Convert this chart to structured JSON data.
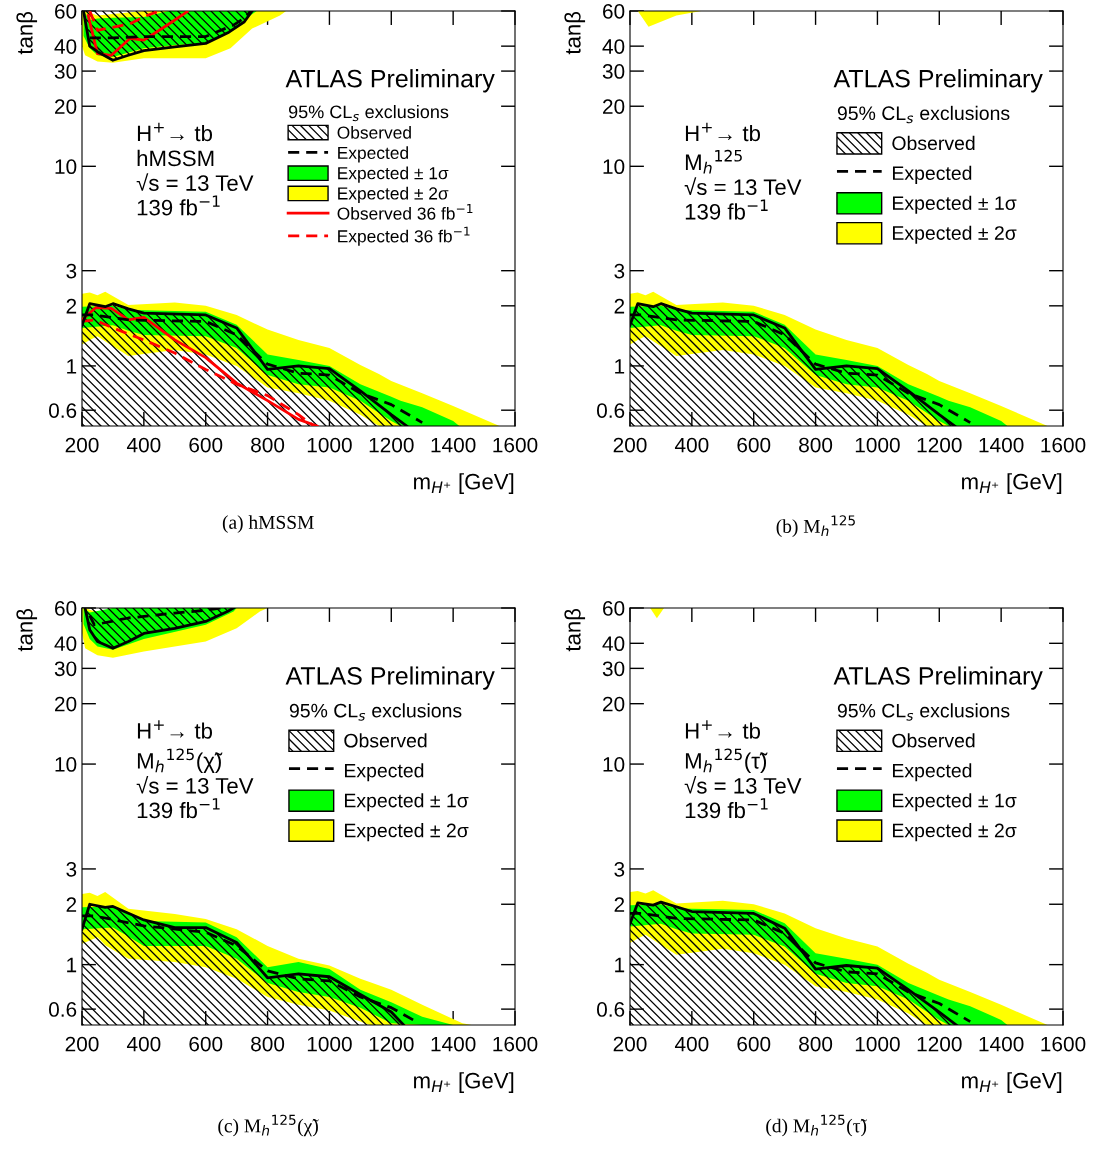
{
  "chart_data": [
    {
      "type": "line",
      "log": "y",
      "xlim": [
        200,
        1600
      ],
      "ylim": [
        0.5,
        60
      ],
      "xticks": [
        200,
        400,
        600,
        800,
        1000,
        1200,
        1400,
        1600
      ],
      "yticks": [
        0.6,
        1,
        2,
        3,
        10,
        20,
        30,
        40,
        60
      ],
      "xlabel": "m$_{H⁺}$ [GeV]",
      "ylabel": "tanβ",
      "legend": "top right",
      "legend_title": "95% CL$_{s}$ exclusions",
      "annotations": [
        "ATLAS Preliminary",
        "H$^{+}$→ tb\nhMSSM\n√s = 13 TeV\n139 fb$^{−1}$",
        "(a) hMSSM"
      ],
      "series": [
        {
          "name": "Observed",
          "type": "area",
          "color": "#000000",
          "line_style": "solid",
          "x": [
            200,
            225,
            275,
            300,
            350,
            400,
            600,
            700,
            800,
            900,
            1000,
            1100,
            1200,
            1250
          ],
          "values": [
            1.6,
            2.05,
            1.98,
            2.05,
            1.93,
            1.84,
            1.8,
            1.55,
            0.96,
            1.0,
            0.97,
            0.75,
            0.57,
            0.5
          ]
        },
        {
          "name": "Expected",
          "color": "#000000",
          "line_style": "dashed",
          "x": [
            200,
            240,
            350,
            600,
            700,
            800,
            900,
            1000,
            1100,
            1200,
            1300
          ],
          "values": [
            1.8,
            1.8,
            1.7,
            1.67,
            1.43,
            1.02,
            0.92,
            0.9,
            0.73,
            0.64,
            0.52
          ]
        },
        {
          "name": "Expected ± 1σ",
          "color": "#00ff00",
          "x": [
            200,
            300,
            350,
            400,
            600,
            700,
            800,
            900,
            1000,
            1100,
            1200,
            1230,
            1300,
            1400,
            1420
          ],
          "values": [
            null,
            null,
            null,
            null,
            null,
            null,
            null,
            null,
            null,
            null,
            null,
            null,
            null,
            null,
            null
          ],
          "lower": [
            1.55,
            1.6,
            1.5,
            1.43,
            1.41,
            1.23,
            0.9,
            0.81,
            0.78,
            0.67,
            0.53,
            0.5,
            0.5,
            0.5,
            0.5
          ],
          "upper": [
            1.98,
            2.0,
            1.91,
            1.9,
            1.87,
            1.61,
            1.14,
            1.07,
            1.0,
            0.81,
            0.7,
            0.67,
            0.62,
            0.53,
            0.5
          ]
        },
        {
          "name": "Expected ± 2σ",
          "color": "#ffff00",
          "x": [
            200,
            225,
            250,
            275,
            350,
            500,
            600,
            700,
            800,
            900,
            1000,
            1100,
            1160,
            1200,
            1300,
            1400,
            1550
          ],
          "values": [
            null,
            null,
            null,
            null,
            null,
            null,
            null,
            null,
            null,
            null,
            null,
            null,
            null,
            null,
            null,
            null,
            null
          ],
          "lower": [
            1.28,
            1.35,
            1.41,
            1.33,
            1.12,
            1.2,
            1.14,
            1.0,
            0.78,
            0.73,
            0.67,
            0.57,
            0.5,
            0.5,
            0.5,
            0.5,
            0.5
          ],
          "upper": [
            2.3,
            2.33,
            2.26,
            2.35,
            2.02,
            2.08,
            2.0,
            1.8,
            1.52,
            1.35,
            1.23,
            1.01,
            0.91,
            0.84,
            0.73,
            0.63,
            0.5
          ]
        },
        {
          "name": "Observed 36 fb$^{−1}$",
          "color": "#ff0000",
          "line_style": "solid",
          "x": [
            200,
            245,
            295,
            350,
            400,
            500,
            600,
            700,
            800,
            900,
            960
          ],
          "values": [
            1.7,
            1.96,
            1.94,
            1.7,
            1.75,
            1.35,
            1.1,
            0.82,
            0.67,
            0.54,
            0.5
          ]
        },
        {
          "name": "Expected 36 fb$^{−1}$",
          "color": "#ff0000",
          "line_style": "dashed",
          "x": [
            200,
            240,
            300,
            400,
            500,
            600,
            700,
            800,
            900,
            950
          ],
          "values": [
            1.67,
            1.7,
            1.55,
            1.35,
            1.16,
            0.96,
            0.81,
            0.71,
            0.57,
            0.5
          ]
        },
        {
          "color": "#000000",
          "line_style": "solid",
          "x": [
            205,
            225,
            250,
            300,
            350,
            400,
            500,
            600,
            675,
            725,
            750
          ],
          "values": [
            60,
            40,
            37.5,
            34,
            36,
            38,
            39.7,
            41.3,
            47,
            53,
            60
          ],
          "lower": [
            60,
            40,
            37.5,
            34,
            36,
            38,
            39.7,
            41.3,
            47,
            53,
            60
          ],
          "upper": [
            60,
            60,
            60,
            60,
            60,
            60,
            60,
            60,
            60,
            60,
            60
          ]
        },
        {
          "color": "#000000",
          "line_style": "dashed",
          "x": [
            225,
            300,
            400,
            600,
            690,
            730,
            745
          ],
          "values": [
            44,
            44,
            44.7,
            44.7,
            51,
            56,
            60
          ]
        },
        {
          "color": "#00ff00",
          "x": [
            205,
            225,
            250,
            300,
            400,
            480,
            500,
            600,
            680,
            730,
            765
          ],
          "values": [
            null,
            null,
            null,
            null,
            null,
            null,
            null,
            null,
            null,
            null,
            null
          ],
          "lower": [
            45,
            39,
            36,
            35.3,
            39,
            40.2,
            40.5,
            41.3,
            47,
            55,
            60
          ],
          "upper": [
            60,
            54,
            55,
            55.5,
            56,
            60,
            60,
            60,
            60,
            60,
            60
          ]
        },
        {
          "color": "#ffff00",
          "x": [
            200,
            210,
            250,
            300,
            400,
            600,
            680,
            750,
            840,
            860
          ],
          "values": [
            null,
            null,
            null,
            null,
            null,
            null,
            null,
            null,
            null,
            null
          ],
          "lower": [
            40,
            36,
            33.5,
            33,
            34.8,
            34.8,
            39,
            49,
            57,
            60
          ],
          "upper": [
            60,
            60,
            57,
            58,
            60,
            60,
            60,
            60,
            60,
            60
          ]
        },
        {
          "color": "#ff0000",
          "line_style": "solid",
          "x": [
            220,
            250,
            295,
            355,
            400,
            475,
            540
          ],
          "values": [
            57,
            36.7,
            36,
            43.7,
            42.9,
            50.9,
            59.5
          ]
        },
        {
          "color": "#ff0000",
          "line_style": "dashed",
          "x": [
            225,
            250,
            355,
            410,
            450
          ],
          "values": [
            60,
            48,
            51.7,
            57,
            60
          ]
        }
      ]
    },
    {
      "type": "line",
      "log": "y",
      "xlim": [
        200,
        1600
      ],
      "ylim": [
        0.5,
        60
      ],
      "xticks": [
        200,
        400,
        600,
        800,
        1000,
        1200,
        1400,
        1600
      ],
      "yticks": [
        0.6,
        1,
        2,
        3,
        10,
        20,
        30,
        40,
        60
      ],
      "xlabel": "m$_{H⁺}$ [GeV]",
      "ylabel": "tanβ",
      "legend": "top right",
      "legend_title": "95% CL$_{s}$ exclusions",
      "annotations": [
        "ATLAS Preliminary",
        "H$^{+}$→ tb\nM$_{h}$$^{125}$\n√s = 13 TeV\n139 fb$^{−1}$",
        "(b) M$_{h}$$^{125}$"
      ],
      "series": [
        {
          "name": "Observed",
          "type": "area",
          "color": "#000000",
          "line_style": "solid",
          "x": [
            200,
            225,
            275,
            300,
            350,
            400,
            600,
            700,
            800,
            900,
            1000,
            1100,
            1200,
            1250
          ],
          "values": [
            1.6,
            2.05,
            1.98,
            2.05,
            1.93,
            1.84,
            1.8,
            1.55,
            0.96,
            1.0,
            0.97,
            0.75,
            0.57,
            0.5
          ]
        },
        {
          "name": "Expected",
          "color": "#000000",
          "line_style": "dashed",
          "x": [
            200,
            240,
            350,
            600,
            700,
            800,
            900,
            1000,
            1100,
            1200,
            1300
          ],
          "values": [
            1.8,
            1.8,
            1.7,
            1.67,
            1.43,
            1.02,
            0.92,
            0.9,
            0.73,
            0.64,
            0.52
          ]
        },
        {
          "name": "Expected ± 1σ",
          "color": "#00ff00",
          "x": [
            200,
            300,
            350,
            400,
            600,
            700,
            800,
            900,
            1000,
            1100,
            1200,
            1230,
            1300,
            1400,
            1420
          ],
          "values": [
            null,
            null,
            null,
            null,
            null,
            null,
            null,
            null,
            null,
            null,
            null,
            null,
            null,
            null,
            null
          ],
          "lower": [
            1.55,
            1.6,
            1.5,
            1.43,
            1.41,
            1.23,
            0.9,
            0.81,
            0.78,
            0.67,
            0.53,
            0.5,
            0.5,
            0.5,
            0.5
          ],
          "upper": [
            1.98,
            2.0,
            1.91,
            1.9,
            1.87,
            1.61,
            1.14,
            1.07,
            1.0,
            0.81,
            0.7,
            0.67,
            0.62,
            0.53,
            0.5
          ]
        },
        {
          "name": "Expected ± 2σ",
          "color": "#ffff00",
          "x": [
            200,
            225,
            250,
            275,
            350,
            500,
            600,
            700,
            800,
            900,
            1000,
            1100,
            1160,
            1200,
            1300,
            1400,
            1550
          ],
          "values": [
            null,
            null,
            null,
            null,
            null,
            null,
            null,
            null,
            null,
            null,
            null,
            null,
            null,
            null,
            null,
            null,
            null
          ],
          "lower": [
            1.28,
            1.35,
            1.41,
            1.33,
            1.12,
            1.2,
            1.14,
            1.0,
            0.78,
            0.73,
            0.67,
            0.57,
            0.5,
            0.5,
            0.5,
            0.5,
            0.5
          ],
          "upper": [
            2.3,
            2.33,
            2.26,
            2.35,
            2.02,
            2.08,
            2.0,
            1.8,
            1.52,
            1.35,
            1.23,
            1.01,
            0.91,
            0.84,
            0.73,
            0.63,
            0.5
          ]
        },
        {
          "color": "#ffff00",
          "x": [
            225,
            260,
            300,
            350,
            430
          ],
          "values": [
            null,
            null,
            null,
            null,
            null
          ],
          "lower": [
            60,
            50,
            53,
            57,
            60
          ],
          "upper": [
            60,
            60,
            60,
            60,
            60
          ]
        }
      ]
    },
    {
      "type": "line",
      "log": "y",
      "xlim": [
        200,
        1600
      ],
      "ylim": [
        0.5,
        60
      ],
      "xticks": [
        200,
        400,
        600,
        800,
        1000,
        1200,
        1400,
        1600
      ],
      "yticks": [
        0.6,
        1,
        2,
        3,
        10,
        20,
        30,
        40,
        60
      ],
      "xlabel": "m$_{H⁺}$ [GeV]",
      "ylabel": "tanβ",
      "legend": "top right",
      "legend_title": "95% CL$_{s}$ exclusions",
      "annotations": [
        "ATLAS Preliminary",
        "H$^{+}$→ tb\nM$_{h}$$^{125}$(χ̃)\n√s = 13 TeV\n139 fb$^{−1}$",
        "(c) M$_{h}$$^{125}$(χ̃)"
      ],
      "series": [
        {
          "name": "Observed",
          "type": "area",
          "color": "#000000",
          "line_style": "solid",
          "x": [
            200,
            225,
            275,
            300,
            400,
            500,
            600,
            700,
            800,
            900,
            1000,
            1100,
            1200,
            1240
          ],
          "values": [
            1.5,
            2.0,
            1.93,
            1.95,
            1.67,
            1.53,
            1.53,
            1.29,
            0.86,
            0.9,
            0.87,
            0.71,
            0.58,
            0.5
          ]
        },
        {
          "name": "Expected",
          "color": "#000000",
          "line_style": "dashed",
          "x": [
            200,
            240,
            400,
            600,
            700,
            800,
            900,
            1000,
            1100,
            1200,
            1290
          ],
          "values": [
            1.75,
            1.75,
            1.56,
            1.45,
            1.24,
            0.93,
            0.85,
            0.83,
            0.69,
            0.61,
            0.51
          ]
        },
        {
          "name": "Expected ± 1σ",
          "color": "#00ff00",
          "x": [
            200,
            300,
            350,
            400,
            600,
            700,
            800,
            900,
            1000,
            1100,
            1200,
            1300,
            1400
          ],
          "values": [
            null,
            null,
            null,
            null,
            null,
            null,
            null,
            null,
            null,
            null,
            null,
            null,
            null
          ],
          "lower": [
            1.5,
            1.53,
            1.38,
            1.24,
            1.24,
            1.07,
            0.81,
            0.73,
            0.69,
            0.61,
            0.51,
            0.5,
            0.5
          ],
          "upper": [
            1.93,
            1.95,
            1.82,
            1.65,
            1.62,
            1.37,
            0.97,
            1.03,
            0.95,
            0.75,
            0.65,
            0.55,
            0.5
          ]
        },
        {
          "name": "Expected ± 2σ",
          "color": "#ffff00",
          "x": [
            200,
            225,
            250,
            275,
            350,
            500,
            600,
            700,
            800,
            900,
            1000,
            1100,
            1130,
            1200,
            1300,
            1430,
            1460
          ],
          "values": [
            null,
            null,
            null,
            null,
            null,
            null,
            null,
            null,
            null,
            null,
            null,
            null,
            null,
            null,
            null,
            null,
            null
          ],
          "lower": [
            1.27,
            1.32,
            1.37,
            1.25,
            1.07,
            1.03,
            0.97,
            0.85,
            0.69,
            0.63,
            0.59,
            0.52,
            0.5,
            0.5,
            0.5,
            0.5,
            0.5
          ],
          "upper": [
            2.25,
            2.28,
            2.2,
            2.3,
            1.9,
            1.79,
            1.69,
            1.5,
            1.24,
            1.07,
            0.99,
            0.85,
            0.82,
            0.75,
            0.63,
            0.51,
            0.5
          ]
        },
        {
          "color": "#000000",
          "line_style": "solid",
          "x": [
            210,
            225,
            250,
            300,
            350,
            400,
            500,
            600,
            670,
            690
          ],
          "values": [
            60,
            46.7,
            40.8,
            37.8,
            40.8,
            44.8,
            47.5,
            51.4,
            57.6,
            60
          ],
          "lower": [
            60,
            46.7,
            40.8,
            37.8,
            40.8,
            44.8,
            47.5,
            51.4,
            57.6,
            60
          ],
          "upper": [
            60,
            60,
            60,
            60,
            60,
            60,
            60,
            60,
            60,
            60
          ]
        },
        {
          "color": "#000000",
          "line_style": "dashed",
          "x": [
            225,
            240,
            350,
            500,
            600,
            650
          ],
          "values": [
            55,
            49.5,
            53.5,
            56.6,
            58.5,
            60
          ]
        },
        {
          "color": "#00ff00",
          "x": [
            205,
            225,
            250,
            300,
            400,
            600,
            690,
            700
          ],
          "values": [
            null,
            null,
            null,
            null,
            null,
            null,
            null,
            null
          ],
          "lower": [
            50,
            42,
            38.6,
            37.2,
            42,
            49.5,
            57.6,
            60
          ],
          "upper": [
            60,
            57,
            58,
            60,
            60,
            60,
            60,
            60
          ]
        },
        {
          "color": "#ffff00",
          "x": [
            200,
            210,
            250,
            300,
            400,
            600,
            700,
            775,
            800
          ],
          "values": [
            null,
            null,
            null,
            null,
            null,
            null,
            null,
            null,
            null
          ],
          "lower": [
            45,
            37.8,
            34.9,
            33.9,
            36.4,
            40.8,
            47.5,
            57.6,
            60
          ],
          "upper": [
            60,
            60,
            57,
            60,
            60,
            60,
            60,
            60,
            60
          ]
        }
      ]
    },
    {
      "type": "line",
      "log": "y",
      "xlim": [
        200,
        1600
      ],
      "ylim": [
        0.5,
        60
      ],
      "xticks": [
        200,
        400,
        600,
        800,
        1000,
        1200,
        1400,
        1600
      ],
      "yticks": [
        0.6,
        1,
        2,
        3,
        10,
        20,
        30,
        40,
        60
      ],
      "xlabel": "m$_{H⁺}$ [GeV]",
      "ylabel": "tanβ",
      "legend": "top right",
      "legend_title": "95% CL$_{s}$ exclusions",
      "annotations": [
        "ATLAS Preliminary",
        "H$^{+}$→ tb\nM$_{h}$$^{125}$(τ̃)\n√s = 13 TeV\n139 fb$^{−1}$",
        "(d) M$_{h}$$^{125}$(τ̃)"
      ],
      "series": [
        {
          "name": "Observed",
          "type": "area",
          "color": "#000000",
          "line_style": "solid",
          "x": [
            200,
            225,
            275,
            300,
            400,
            600,
            700,
            800,
            900,
            1000,
            1100,
            1200,
            1255
          ],
          "values": [
            1.6,
            2.03,
            1.98,
            2.05,
            1.84,
            1.8,
            1.52,
            0.95,
            0.99,
            0.96,
            0.75,
            0.58,
            0.5
          ]
        },
        {
          "name": "Expected",
          "color": "#000000",
          "line_style": "dashed",
          "x": [
            200,
            240,
            350,
            600,
            700,
            800,
            900,
            1000,
            1100,
            1200,
            1300
          ],
          "values": [
            1.8,
            1.8,
            1.7,
            1.67,
            1.43,
            1.02,
            0.92,
            0.9,
            0.73,
            0.64,
            0.52
          ]
        },
        {
          "name": "Expected ± 1σ",
          "color": "#00ff00",
          "x": [
            200,
            300,
            350,
            400,
            600,
            700,
            800,
            900,
            1000,
            1100,
            1200,
            1230,
            1300,
            1400,
            1420
          ],
          "values": [
            null,
            null,
            null,
            null,
            null,
            null,
            null,
            null,
            null,
            null,
            null,
            null,
            null,
            null,
            null
          ],
          "lower": [
            1.55,
            1.6,
            1.5,
            1.43,
            1.41,
            1.23,
            0.9,
            0.81,
            0.78,
            0.67,
            0.53,
            0.5,
            0.5,
            0.5,
            0.5
          ],
          "upper": [
            1.98,
            2.0,
            1.91,
            1.9,
            1.87,
            1.61,
            1.14,
            1.07,
            1.0,
            0.81,
            0.7,
            0.67,
            0.62,
            0.53,
            0.5
          ]
        },
        {
          "name": "Expected ± 2σ",
          "color": "#ffff00",
          "x": [
            200,
            225,
            250,
            275,
            350,
            500,
            600,
            700,
            800,
            900,
            1000,
            1100,
            1160,
            1200,
            1300,
            1400,
            1550
          ],
          "values": [
            null,
            null,
            null,
            null,
            null,
            null,
            null,
            null,
            null,
            null,
            null,
            null,
            null,
            null,
            null,
            null,
            null
          ],
          "lower": [
            1.28,
            1.35,
            1.41,
            1.33,
            1.12,
            1.2,
            1.14,
            1.0,
            0.78,
            0.73,
            0.67,
            0.57,
            0.5,
            0.5,
            0.5,
            0.5,
            0.5
          ],
          "upper": [
            2.3,
            2.33,
            2.26,
            2.35,
            2.02,
            2.08,
            2.0,
            1.8,
            1.52,
            1.35,
            1.23,
            1.01,
            0.91,
            0.84,
            0.73,
            0.63,
            0.5
          ]
        },
        {
          "color": "#ffff00",
          "x": [
            265,
            287,
            310
          ],
          "values": [
            null,
            null,
            null
          ],
          "lower": [
            60,
            53.4,
            60
          ],
          "upper": [
            60,
            60,
            60
          ]
        }
      ]
    }
  ]
}
